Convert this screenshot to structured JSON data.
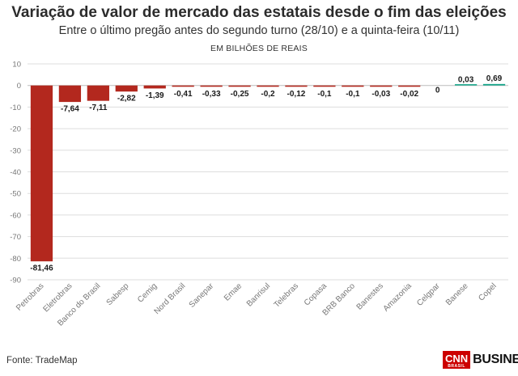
{
  "header": {
    "title": "Variação de valor de mercado das estatais desde o fim das eleições",
    "subtitle": "Entre o último pregão antes do segundo turno (28/10) e a quinta-feira (10/11)",
    "unit": "EM BILHÕES DE REAIS"
  },
  "footer": {
    "source": "Fonte: TradeMap",
    "logo_cnn": "CNN",
    "logo_cnn_sub": "BRASIL",
    "logo_business": "BUSINESS",
    "logo_dot": "."
  },
  "colors": {
    "negative": "#b3281e",
    "positive": "#1aa78c",
    "grid": "#dddddd",
    "axis_text": "#777777"
  },
  "chart_data": {
    "type": "bar",
    "title": "Variação de valor de mercado das estatais desde o fim das eleições",
    "ylabel": "EM BILHÕES DE REAIS",
    "xlabel": "",
    "ylim": [
      -90,
      10
    ],
    "yticks": [
      10,
      0,
      -10,
      -20,
      -30,
      -40,
      -50,
      -60,
      -70,
      -80,
      -90
    ],
    "grid": true,
    "categories": [
      "Petrobras",
      "Eletrobras",
      "Banco do Brasil",
      "Sabesp",
      "Cemig",
      "Nord Brasil",
      "Sanepar",
      "Emae",
      "Banrisul",
      "Telebras",
      "Copasa",
      "BRB Banco",
      "Banestes",
      "Amazonia",
      "Celgpar",
      "Banese",
      "Copel"
    ],
    "values": [
      -81.46,
      -7.64,
      -7.11,
      -2.82,
      -1.39,
      -0.41,
      -0.33,
      -0.25,
      -0.2,
      -0.12,
      -0.1,
      -0.1,
      -0.03,
      -0.02,
      0,
      0.03,
      0.69
    ],
    "value_labels": [
      "-81,46",
      "-7,64",
      "-7,11",
      "-2,82",
      "-1,39",
      "-0,41",
      "-0,33",
      "-0,25",
      "-0,2",
      "-0,12",
      "-0,1",
      "-0,1",
      "-0,03",
      "-0,02",
      "0",
      "0,03",
      "0,69"
    ]
  }
}
